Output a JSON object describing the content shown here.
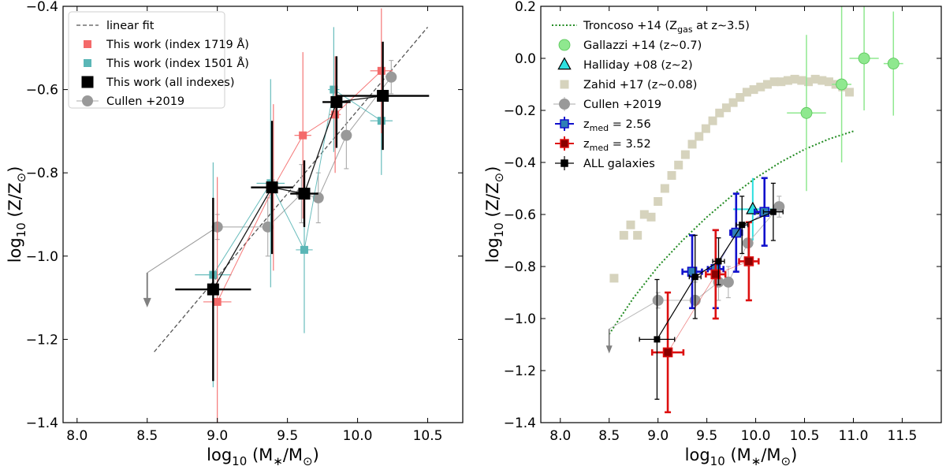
{
  "chart_data": [
    {
      "type": "scatter",
      "panel": "left",
      "xlabel": "log₁₀ (M∗/M⊙)",
      "ylabel": "log₁₀ (Z/Z⊙)",
      "xlim": [
        7.9,
        10.75
      ],
      "ylim": [
        -1.4,
        -0.4
      ],
      "xticks": [
        8.0,
        8.5,
        9.0,
        9.5,
        10.0,
        10.5
      ],
      "xtick_labels": [
        "8.0",
        "8.5",
        "9.0",
        "9.5",
        "10.0",
        "10.5"
      ],
      "yticks": [
        -1.4,
        -1.2,
        -1.0,
        -0.8,
        -0.6,
        -0.4
      ],
      "ytick_labels": [
        "−1.4",
        "−1.2",
        "−1.0",
        "−0.8",
        "−0.6",
        "−0.4"
      ],
      "legend_position": "top-left",
      "fit_line": {
        "name": "linear fit",
        "x": [
          8.55,
          10.5
        ],
        "y": [
          -1.23,
          -0.45
        ],
        "color": "#555555"
      },
      "series": [
        {
          "name": "Cullen +2019",
          "color": "#999999",
          "marker": "circle",
          "upper_limit_x": 8.5,
          "upper_limit_y": -1.04,
          "x": [
            9.0,
            9.36,
            9.6,
            9.72,
            9.92,
            10.24
          ],
          "y": [
            -0.93,
            -0.93,
            -0.85,
            -0.86,
            -0.71,
            -0.57
          ],
          "yerr": [
            0.03,
            0.07,
            0.07,
            0.06,
            0.08,
            0.04
          ]
        },
        {
          "name": "This work (index 1501 Å)",
          "color": "#5ab6b6",
          "marker": "square",
          "x": [
            8.97,
            9.38,
            9.62,
            9.83,
            10.17
          ],
          "y": [
            -1.045,
            -0.825,
            -0.985,
            -0.6,
            -0.675
          ],
          "xerr": [
            0.13,
            0.1,
            0.06,
            0.04,
            0.08
          ],
          "yerr": [
            0.27,
            0.25,
            0.2,
            0.15,
            0.13
          ]
        },
        {
          "name": "This work (index 1719 Å)",
          "color": "#f46a6a",
          "marker": "square",
          "x": [
            9.0,
            9.4,
            9.61,
            9.84,
            10.17
          ],
          "y": [
            -1.11,
            -0.835,
            -0.71,
            -0.66,
            -0.555
          ],
          "xerr": [
            0.1,
            0.1,
            0.06,
            0.04,
            0.08
          ],
          "yerr": [
            0.3,
            0.2,
            0.2,
            0.14,
            0.15
          ]
        },
        {
          "name": "This work (all indexes)",
          "color": "#000000",
          "marker": "square",
          "x": [
            8.97,
            9.39,
            9.62,
            9.85,
            10.18
          ],
          "y": [
            -1.08,
            -0.835,
            -0.85,
            -0.63,
            -0.615
          ],
          "xerr": [
            0.27,
            0.15,
            0.1,
            0.1,
            0.33
          ],
          "yerr": [
            0.22,
            0.16,
            0.08,
            0.11,
            0.13
          ]
        }
      ],
      "legend": [
        "linear fit",
        "This work (index 1719 Å)",
        "This work (index 1501 Å)",
        "This work (all indexes)",
        "Cullen +2019"
      ]
    },
    {
      "type": "scatter",
      "panel": "right",
      "xlabel": "log₁₀ (M∗/M⊙)",
      "ylabel": "log₁₀ (Z/Z⊙)",
      "xlim": [
        7.8,
        11.9
      ],
      "ylim": [
        -1.4,
        0.2
      ],
      "xticks": [
        8.0,
        8.5,
        9.0,
        9.5,
        10.0,
        10.5,
        11.0,
        11.5
      ],
      "xtick_labels": [
        "8.0",
        "8.5",
        "9.0",
        "9.5",
        "10.0",
        "10.5",
        "11.0",
        "11.5"
      ],
      "yticks": [
        -1.4,
        -1.2,
        -1.0,
        -0.8,
        -0.6,
        -0.4,
        -0.2,
        0.0,
        0.2
      ],
      "ytick_labels": [
        "−1.4",
        "−1.2",
        "−1.0",
        "−0.8",
        "−0.6",
        "−0.4",
        "−0.2",
        "0.0",
        "0.2"
      ],
      "legend_position": "top-left",
      "curve": {
        "name": "Troncoso +14 (Z_gas at z∼3.5)",
        "color": "#228b22",
        "x": [
          8.5,
          8.75,
          9.0,
          9.25,
          9.5,
          9.75,
          10.0,
          10.25,
          10.5,
          10.75,
          11.0
        ],
        "y": [
          -1.06,
          -0.92,
          -0.8,
          -0.7,
          -0.61,
          -0.53,
          -0.46,
          -0.4,
          -0.35,
          -0.31,
          -0.28
        ]
      },
      "series": [
        {
          "name": "Zahid +17 (z∼0.08)",
          "color": "#d6d3bd",
          "marker": "square",
          "x": [
            8.55,
            8.65,
            8.72,
            8.79,
            8.86,
            8.93,
            9.0,
            9.07,
            9.14,
            9.21,
            9.28,
            9.35,
            9.42,
            9.49,
            9.56,
            9.63,
            9.7,
            9.77,
            9.84,
            9.91,
            9.98,
            10.05,
            10.12,
            10.19,
            10.26,
            10.33,
            10.4,
            10.47,
            10.54,
            10.61,
            10.68,
            10.75,
            10.82,
            10.89,
            10.96
          ],
          "y": [
            -0.845,
            -0.68,
            -0.64,
            -0.68,
            -0.6,
            -0.61,
            -0.55,
            -0.5,
            -0.45,
            -0.41,
            -0.37,
            -0.33,
            -0.3,
            -0.27,
            -0.24,
            -0.21,
            -0.19,
            -0.17,
            -0.15,
            -0.13,
            -0.12,
            -0.11,
            -0.1,
            -0.09,
            -0.09,
            -0.085,
            -0.08,
            -0.085,
            -0.09,
            -0.08,
            -0.085,
            -0.09,
            -0.1,
            -0.11,
            -0.13
          ]
        },
        {
          "name": "Gallazzi +14 (z∼0.7)",
          "color": "#8fe88f",
          "marker": "circle",
          "x": [
            10.52,
            10.88,
            11.11,
            11.41
          ],
          "y": [
            -0.21,
            -0.1,
            0.0,
            -0.02
          ],
          "xerr": [
            0.2,
            0.1,
            0.15,
            0.1
          ],
          "yerr": [
            0.3,
            0.3,
            0.2,
            0.2
          ]
        },
        {
          "name": "Halliday +08 (z∼2)",
          "color": "#2ee0e0",
          "marker": "triangle",
          "x": [
            9.97
          ],
          "y": [
            -0.58
          ],
          "xerr": [
            0.2
          ],
          "yerr": [
            0.12
          ]
        },
        {
          "name": "Cullen +2019",
          "color": "#999999",
          "marker": "circle",
          "upper_limit_x": 8.5,
          "upper_limit_y": -1.04,
          "x": [
            9.0,
            9.38,
            9.62,
            9.72,
            9.92,
            10.24
          ],
          "y": [
            -0.93,
            -0.93,
            -0.86,
            -0.86,
            -0.71,
            -0.57
          ],
          "yerr": [
            0.03,
            0.07,
            0.07,
            0.06,
            0.08,
            0.04
          ]
        },
        {
          "name": "z_med = 2.56",
          "color": "#1010cc",
          "fill": "#2f7fb5",
          "marker": "square",
          "x": [
            9.35,
            9.59,
            9.8,
            10.09
          ],
          "y": [
            -0.82,
            -0.81,
            -0.67,
            -0.59
          ],
          "xerr": [
            0.1,
            0.08,
            0.06,
            0.1
          ],
          "yerr": [
            0.14,
            0.15,
            0.15,
            0.13
          ]
        },
        {
          "name": "z_med = 3.52",
          "color": "#dd1010",
          "fill": "#8b0000",
          "marker": "square",
          "x": [
            9.1,
            9.59,
            9.93
          ],
          "y": [
            -1.13,
            -0.83,
            -0.78
          ],
          "xerr": [
            0.16,
            0.1,
            0.1
          ],
          "yerr": [
            0.23,
            0.17,
            0.15
          ]
        },
        {
          "name": "ALL galaxies",
          "color": "#000000",
          "marker": "square",
          "x": [
            8.99,
            9.38,
            9.62,
            9.86,
            10.18
          ],
          "y": [
            -1.08,
            -0.84,
            -0.78,
            -0.64,
            -0.59
          ],
          "xerr": [
            0.18,
            0.06,
            0.06,
            0.06,
            0.1
          ],
          "yerr": [
            0.23,
            0.16,
            0.09,
            0.11,
            0.11
          ]
        }
      ],
      "legend": [
        "Troncoso +14 (Z_gas at z∼3.5)",
        "Gallazzi +14 (z∼0.7)",
        "Halliday +08 (z∼2)",
        "Zahid +17 (z∼0.08)",
        "Cullen +2019",
        "z_med = 2.56",
        "z_med = 3.52",
        "ALL galaxies"
      ]
    }
  ]
}
